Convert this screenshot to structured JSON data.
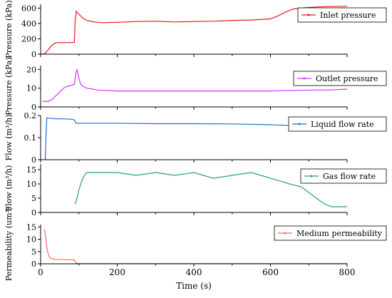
{
  "chart_data": [
    {
      "type": "line",
      "legend": "Inlet pressure",
      "ylabel": "Pressure (kPa)",
      "color": "#e31a1c",
      "ylim": [
        0,
        650
      ],
      "yticks": [
        0,
        200,
        400,
        600
      ],
      "xlim": [
        0,
        800
      ],
      "x": [
        5,
        12,
        20,
        28,
        36,
        44,
        50,
        60,
        70,
        80,
        88,
        90,
        93,
        100,
        110,
        120,
        140,
        160,
        200,
        250,
        300,
        350,
        400,
        450,
        500,
        550,
        600,
        620,
        640,
        660,
        700,
        750,
        800
      ],
      "values": [
        0,
        10,
        60,
        110,
        140,
        150,
        150,
        150,
        150,
        150,
        155,
        430,
        560,
        520,
        470,
        440,
        420,
        410,
        415,
        425,
        430,
        420,
        425,
        430,
        440,
        445,
        460,
        500,
        550,
        590,
        610,
        620,
        625
      ]
    },
    {
      "type": "line",
      "legend": "Outlet pressure",
      "ylabel": "Pressure (kPa)",
      "color": "#cc33ff",
      "ylim": [
        0,
        22
      ],
      "yticks": [
        0,
        10,
        20
      ],
      "xlim": [
        0,
        800
      ],
      "x": [
        5,
        15,
        20,
        30,
        40,
        50,
        60,
        70,
        80,
        88,
        92,
        95,
        100,
        105,
        110,
        120,
        150,
        200,
        300,
        400,
        500,
        600,
        700,
        750,
        800
      ],
      "values": [
        3,
        3,
        3,
        4,
        6,
        8,
        10,
        11,
        11.5,
        12,
        18,
        20,
        15,
        12,
        11,
        10,
        9,
        8.5,
        8.5,
        8.5,
        8.5,
        8.5,
        9,
        9,
        9.5
      ]
    },
    {
      "type": "line",
      "legend": "Liquid flow rate",
      "ylabel": "Flow (m³/h)",
      "color": "#1f6fd1",
      "ylim": [
        0,
        0.2
      ],
      "yticks": [
        0,
        0.1,
        0.2
      ],
      "xlim": [
        0,
        800
      ],
      "x": [
        12,
        14,
        16,
        20,
        40,
        60,
        80,
        88,
        92,
        100,
        150,
        200,
        300,
        400,
        500,
        600,
        700,
        800
      ],
      "values": [
        0,
        0.1,
        0.19,
        0.188,
        0.185,
        0.185,
        0.183,
        0.18,
        0.165,
        0.165,
        0.165,
        0.165,
        0.163,
        0.163,
        0.162,
        0.158,
        0.152,
        0.15
      ]
    },
    {
      "type": "line",
      "legend": "Gas flow rate",
      "ylabel": "Flow (m³/h)",
      "color": "#2ca25f",
      "ylim": [
        0,
        17
      ],
      "yticks": [
        0,
        5,
        10,
        15
      ],
      "xlim": [
        0,
        800
      ],
      "x": [
        90,
        95,
        100,
        110,
        120,
        140,
        200,
        250,
        300,
        350,
        400,
        450,
        500,
        550,
        600,
        650,
        680,
        700,
        720,
        740,
        760,
        780,
        800
      ],
      "values": [
        3,
        5,
        8,
        12,
        14,
        14,
        14,
        13,
        14,
        13,
        14,
        12,
        13,
        14,
        12,
        10,
        9,
        7,
        5,
        3,
        2,
        2,
        2
      ]
    },
    {
      "type": "line",
      "legend": "Medium permeability",
      "ylabel": "Permeability (um²)",
      "xlabel": "Time (s)",
      "color": "#ff6666",
      "ylim": [
        0,
        16
      ],
      "yticks": [
        0,
        5,
        10,
        15
      ],
      "xlim": [
        0,
        800
      ],
      "xticks": [
        0,
        200,
        400,
        600,
        800
      ],
      "x": [
        10,
        12,
        15,
        18,
        22,
        26,
        30,
        40,
        60,
        80,
        88,
        92,
        100,
        200,
        400,
        600,
        800
      ],
      "values": [
        14,
        12,
        8,
        5,
        3,
        2.2,
        2,
        1.8,
        1.7,
        1.6,
        1.6,
        0.3,
        0.1,
        0.1,
        0.1,
        0.1,
        0.1
      ]
    }
  ]
}
